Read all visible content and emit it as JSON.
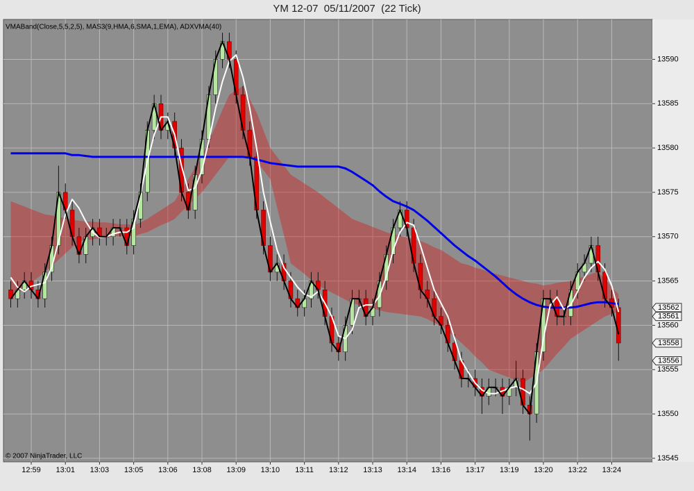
{
  "chart_data": {
    "type": "candlestick",
    "title": "YM 12-07  05/11/2007  (22 Tick)",
    "indicator_label": "VMABand(Close,5,5,2,5), MAS3(9,HMA,6,SMA,1,EMA), ADXVMA(40)",
    "copyright": "© 2007 NinjaTrader, LLC",
    "categories": [
      null,
      null,
      null,
      "12:59",
      null,
      null,
      null,
      null,
      "13:01",
      null,
      null,
      null,
      null,
      "13:03",
      null,
      null,
      null,
      null,
      "13:05",
      null,
      null,
      null,
      null,
      "13:06",
      null,
      null,
      null,
      null,
      "13:08",
      null,
      null,
      null,
      null,
      "13:09",
      null,
      null,
      null,
      null,
      "13:10",
      null,
      null,
      null,
      null,
      "13:11",
      null,
      null,
      null,
      null,
      "13:12",
      null,
      null,
      null,
      null,
      "13:13",
      null,
      null,
      null,
      null,
      "13:14",
      null,
      null,
      null,
      null,
      "13:16",
      null,
      null,
      null,
      null,
      "13:17",
      null,
      null,
      null,
      null,
      "13:19",
      null,
      null,
      null,
      null,
      "13:20",
      null,
      null,
      null,
      null,
      "13:22",
      null,
      null,
      null,
      null,
      "13:24",
      null
    ],
    "open": [
      13564,
      13563,
      13564,
      13565,
      13564,
      13563,
      13566,
      13569,
      13575,
      13573,
      13570,
      13568,
      13570,
      13571,
      13570,
      13570,
      13571,
      13571,
      13569,
      13572,
      13575,
      13582,
      13585,
      13582,
      13583,
      13580,
      13575,
      13573,
      13577,
      13581,
      13586,
      13590,
      13592,
      13590,
      13586,
      13582,
      13579,
      13573,
      13569,
      13566,
      13567,
      13565,
      13563,
      13562,
      13563,
      13565,
      13564,
      13561,
      13558,
      13557,
      13560,
      13563,
      13563,
      13561,
      13562,
      13565,
      13568,
      13571,
      13573,
      13571,
      13567,
      13564,
      13563,
      13561,
      13560,
      13558,
      13556,
      13554,
      13554,
      13553,
      13552,
      13553,
      13553,
      13552,
      13553,
      13554,
      13551,
      13550,
      13557,
      13563,
      13563,
      13561,
      13561,
      13564,
      13566,
      13567,
      13569,
      13566,
      13563,
      13562
    ],
    "high": [
      13565,
      13565,
      13566,
      13566,
      13565,
      13567,
      13570,
      13578,
      13576,
      13574,
      13571,
      13571,
      13572,
      13572,
      13571,
      13572,
      13572,
      13572,
      13573,
      13576,
      13583,
      13586,
      13586,
      13584,
      13584,
      13581,
      13576,
      13578,
      13582,
      13587,
      13591,
      13593,
      13593,
      13591,
      13587,
      13583,
      13580,
      13574,
      13570,
      13568,
      13568,
      13566,
      13564,
      13564,
      13566,
      13566,
      13565,
      13562,
      13559,
      13561,
      13564,
      13564,
      13564,
      13563,
      13566,
      13569,
      13572,
      13574,
      13574,
      13572,
      13568,
      13565,
      13564,
      13562,
      13561,
      13559,
      13557,
      13555,
      13555,
      13554,
      13554,
      13554,
      13554,
      13554,
      13556,
      13555,
      13552,
      13558,
      13564,
      13564,
      13564,
      13562,
      13565,
      13567,
      13568,
      13570,
      13570,
      13567,
      13564,
      13563
    ],
    "low": [
      13562,
      13562,
      13563,
      13563,
      13562,
      13562,
      13565,
      13568,
      13572,
      13569,
      13567,
      13567,
      13569,
      13569,
      13569,
      13569,
      13570,
      13568,
      13568,
      13571,
      13574,
      13581,
      13581,
      13581,
      13579,
      13574,
      13572,
      13572,
      13576,
      13580,
      13585,
      13589,
      13589,
      13585,
      13581,
      13578,
      13572,
      13568,
      13565,
      13565,
      13564,
      13562,
      13561,
      13561,
      13562,
      13563,
      13560,
      13557,
      13556,
      13556,
      13559,
      13562,
      13560,
      13560,
      13561,
      13564,
      13567,
      13570,
      13570,
      13566,
      13563,
      13562,
      13560,
      13559,
      13557,
      13555,
      13553,
      13553,
      13552,
      13550,
      13551,
      13552,
      13550,
      13551,
      13552,
      13550,
      13547,
      13549,
      13556,
      13562,
      13560,
      13560,
      13560,
      13563,
      13565,
      13566,
      13565,
      13562,
      13561,
      13556
    ],
    "close": [
      13563,
      13564,
      13565,
      13564,
      13563,
      13566,
      13569,
      13575,
      13573,
      13570,
      13568,
      13570,
      13571,
      13570,
      13570,
      13571,
      13571,
      13569,
      13572,
      13575,
      13582,
      13585,
      13582,
      13583,
      13580,
      13575,
      13573,
      13577,
      13581,
      13586,
      13590,
      13592,
      13590,
      13586,
      13582,
      13579,
      13573,
      13569,
      13566,
      13567,
      13565,
      13563,
      13562,
      13563,
      13565,
      13564,
      13561,
      13558,
      13557,
      13560,
      13563,
      13563,
      13561,
      13562,
      13565,
      13568,
      13571,
      13573,
      13571,
      13567,
      13564,
      13563,
      13561,
      13560,
      13558,
      13556,
      13554,
      13554,
      13553,
      13552,
      13553,
      13553,
      13552,
      13553,
      13554,
      13551,
      13550,
      13557,
      13563,
      13563,
      13561,
      13561,
      13564,
      13566,
      13567,
      13569,
      13566,
      13563,
      13562,
      13558
    ],
    "up_color": "#b6e6a2",
    "down_color": "#e00000",
    "band": {
      "color": "#d41c1c",
      "upper": [
        13574.0,
        13573.7,
        13573.4,
        13573.1,
        13572.8,
        13572.5,
        13572.4,
        13572.2,
        13572.1,
        13571.9,
        13571.8,
        13571.7,
        13571.7,
        13571.6,
        13571.6,
        13571.5,
        13571.4,
        13571.4,
        13571.3,
        13571.6,
        13572.0,
        13572.5,
        13573.0,
        13573.5,
        13574.0,
        13575.3,
        13576.5,
        13577.8,
        13579.0,
        13580.8,
        13582.5,
        13584.3,
        13586.0,
        13586.5,
        13587.0,
        13585.5,
        13584.0,
        13582.0,
        13580.0,
        13579.0,
        13578.0,
        13577.0,
        13576.5,
        13576.0,
        13575.5,
        13575.0,
        13574.4,
        13573.8,
        13573.2,
        13572.6,
        13572.0,
        13571.7,
        13571.4,
        13571.1,
        13570.8,
        13570.5,
        13570.3,
        13570.1,
        13569.9,
        13569.7,
        13569.5,
        13569.2,
        13568.8,
        13568.5,
        13568.0,
        13567.5,
        13567.0,
        13566.8,
        13566.5,
        13566.3,
        13566.0,
        13565.8,
        13565.6,
        13565.4,
        13565.2,
        13565.0,
        13564.8,
        13564.7,
        13564.5,
        13564.6,
        13564.8,
        13564.9,
        13565.0,
        13565.3,
        13565.5,
        13565.8,
        13566.0,
        13565.2,
        13564.3,
        13563.5
      ],
      "lower": [
        13563.0,
        13563.6,
        13564.2,
        13564.8,
        13565.4,
        13566.0,
        13566.7,
        13567.4,
        13568.1,
        13568.8,
        13569.5,
        13569.6,
        13569.7,
        13569.8,
        13569.9,
        13570.0,
        13570.0,
        13570.0,
        13570.0,
        13570.3,
        13570.5,
        13570.9,
        13571.3,
        13571.6,
        13572.0,
        13572.8,
        13573.5,
        13574.3,
        13575.0,
        13576.0,
        13577.0,
        13578.0,
        13579.0,
        13579.0,
        13579.0,
        13578.8,
        13578.5,
        13577.5,
        13576.5,
        13573.3,
        13570.2,
        13567.0,
        13566.4,
        13565.8,
        13565.1,
        13564.5,
        13564.1,
        13563.7,
        13563.3,
        13562.9,
        13562.5,
        13562.3,
        13562.1,
        13561.9,
        13561.7,
        13561.5,
        13561.4,
        13561.3,
        13561.2,
        13561.1,
        13561.0,
        13560.7,
        13560.3,
        13560.0,
        13559.3,
        13558.7,
        13558.0,
        13557.3,
        13556.5,
        13555.8,
        13555.0,
        13554.7,
        13554.4,
        13554.1,
        13553.8,
        13553.5,
        13554.0,
        13554.5,
        13555.0,
        13555.9,
        13556.8,
        13557.6,
        13558.5,
        13559.0,
        13559.5,
        13560.0,
        13560.5,
        13561.0,
        13561.3,
        13561.5
      ]
    },
    "sma": {
      "color": "#ffffff",
      "values": [
        13565.4,
        13564.3,
        13563.8,
        13564.4,
        13564.6,
        13564.8,
        13566.5,
        13569.5,
        13572.5,
        13574.2,
        13573.2,
        13571.7,
        13570.5,
        13569.9,
        13570.0,
        13570.3,
        13570.5,
        13570.5,
        13571.0,
        13574.8,
        13578.5,
        13581.5,
        13583.5,
        13583.5,
        13581.5,
        13578.0,
        13575.2,
        13575.5,
        13577.5,
        13580.8,
        13584.5,
        13587.5,
        13589.8,
        13590.5,
        13588.0,
        13584.5,
        13580.0,
        13575.0,
        13571.7,
        13568.5,
        13566.5,
        13565.4,
        13564.3,
        13563.5,
        13563.2,
        13563.8,
        13562.5,
        13561.0,
        13558.8,
        13558.5,
        13559.5,
        13562.0,
        13562.3,
        13562.3,
        13563.3,
        13565.5,
        13568.5,
        13570.5,
        13571.6,
        13571.3,
        13569.0,
        13566.5,
        13564.0,
        13562.5,
        13561.0,
        13558.5,
        13556.0,
        13554.7,
        13553.5,
        13552.7,
        13552.3,
        13552.3,
        13552.6,
        13552.9,
        13553.1,
        13552.8,
        13552.3,
        13553.5,
        13558.5,
        13562.3,
        13563.2,
        13561.8,
        13562.3,
        13563.8,
        13565.4,
        13566.5,
        13567.2,
        13566.3,
        13564.5,
        13561.5
      ]
    },
    "hma": {
      "color": "#000000",
      "values": [
        13563,
        13564,
        13565,
        13564,
        13563,
        13566,
        13569,
        13575,
        13573,
        13570,
        13568,
        13570,
        13571,
        13570,
        13570,
        13571,
        13571,
        13569,
        13572,
        13575,
        13582,
        13585,
        13582,
        13583,
        13580,
        13575,
        13573,
        13577,
        13581,
        13586,
        13590,
        13592,
        13590,
        13586,
        13582,
        13579,
        13573,
        13569,
        13566,
        13567,
        13565,
        13563,
        13562,
        13563,
        13565,
        13564,
        13561,
        13558,
        13557,
        13560,
        13563,
        13563,
        13561,
        13562,
        13565,
        13568,
        13571,
        13573,
        13571,
        13567,
        13564,
        13563,
        13561,
        13560,
        13558,
        13556,
        13554,
        13554,
        13553,
        13552,
        13553,
        13553,
        13552,
        13553,
        13554,
        13551,
        13550,
        13557,
        13563,
        13563,
        13561,
        13561,
        13564,
        13566,
        13567,
        13569,
        13566,
        13563,
        13562,
        13559
      ]
    },
    "adxvma": {
      "color": "#0000e6",
      "values": [
        13579.4,
        13579.4,
        13579.4,
        13579.4,
        13579.4,
        13579.4,
        13579.4,
        13579.4,
        13579.4,
        13579.2,
        13579.2,
        13579.1,
        13579.0,
        13579.0,
        13579.0,
        13579.0,
        13579.0,
        13579.0,
        13579.0,
        13579.0,
        13579.0,
        13579.0,
        13579.0,
        13579.0,
        13579.0,
        13579.0,
        13579.0,
        13579.0,
        13579.0,
        13579.0,
        13579.0,
        13579.0,
        13579.0,
        13579.0,
        13579.0,
        13578.9,
        13578.7,
        13578.5,
        13578.3,
        13578.2,
        13578.1,
        13578.0,
        13577.9,
        13577.9,
        13577.9,
        13577.9,
        13577.9,
        13577.9,
        13577.9,
        13577.7,
        13577.3,
        13576.8,
        13576.3,
        13575.8,
        13575.1,
        13574.5,
        13574.0,
        13573.7,
        13573.4,
        13573.0,
        13572.4,
        13571.8,
        13571.1,
        13570.4,
        13569.7,
        13569.0,
        13568.4,
        13567.8,
        13567.3,
        13566.7,
        13566.1,
        13565.5,
        13564.8,
        13564.1,
        13563.5,
        13563.0,
        13562.6,
        13562.3,
        13562.1,
        13562.0,
        13562.0,
        13562.0,
        13562.0,
        13562.1,
        13562.3,
        13562.5,
        13562.6,
        13562.6,
        13562.5,
        13562.4
      ]
    },
    "price_markers": [
      13562,
      13561,
      13558,
      13556
    ],
    "ylim": [
      13544.6,
      13594.5
    ],
    "yticks": [
      13545,
      13550,
      13555,
      13560,
      13565,
      13570,
      13575,
      13580,
      13585,
      13590
    ],
    "grid": true
  }
}
